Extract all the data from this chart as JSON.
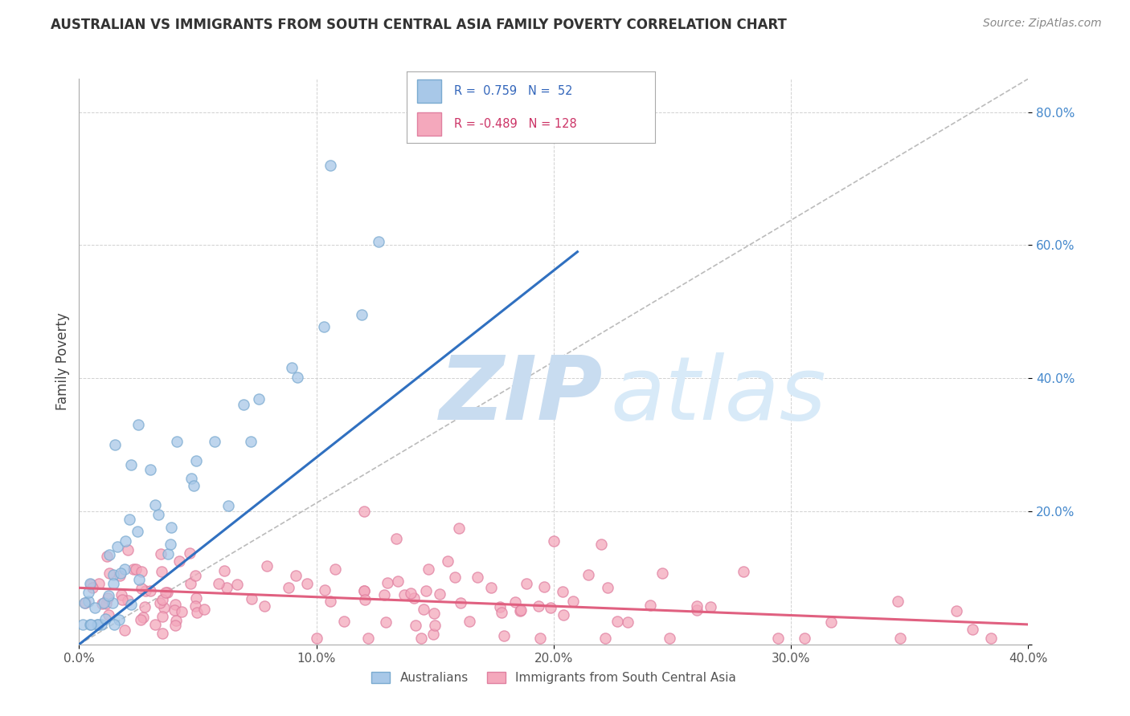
{
  "title": "AUSTRALIAN VS IMMIGRANTS FROM SOUTH CENTRAL ASIA FAMILY POVERTY CORRELATION CHART",
  "source": "Source: ZipAtlas.com",
  "ylabel": "Family Poverty",
  "legend_blue_r": "0.759",
  "legend_blue_n": "52",
  "legend_pink_r": "-0.489",
  "legend_pink_n": "128",
  "legend_label_blue": "Australians",
  "legend_label_pink": "Immigrants from South Central Asia",
  "xlim": [
    0.0,
    0.4
  ],
  "ylim": [
    0.0,
    0.85
  ],
  "blue_color": "#A8C8E8",
  "blue_edge_color": "#7AAAD0",
  "pink_color": "#F4A8BC",
  "pink_edge_color": "#E080A0",
  "blue_line_color": "#3070C0",
  "pink_line_color": "#E06080",
  "diag_line_color": "#BBBBBB",
  "grid_color": "#CCCCCC",
  "background_color": "#FFFFFF",
  "watermark_zip_color": "#D8E8F4",
  "watermark_atlas_color": "#C8DCF0",
  "blue_line_x0": 0.0,
  "blue_line_y0": 0.0,
  "blue_line_x1": 0.21,
  "blue_line_y1": 0.59,
  "pink_line_x0": 0.0,
  "pink_line_y0": 0.085,
  "pink_line_x1": 0.4,
  "pink_line_y1": 0.03,
  "diag_line_x0": 0.0,
  "diag_line_y0": 0.0,
  "diag_line_x1": 0.4,
  "diag_line_y1": 0.85
}
